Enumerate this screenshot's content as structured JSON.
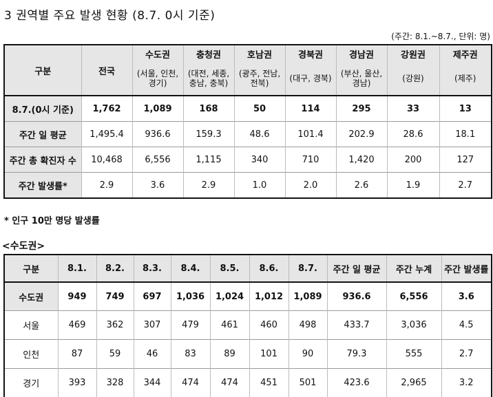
{
  "title": "3 권역별 주요 발생 현황 (8.7. 0시 기준)",
  "unit_note": "(주간: 8.1.~8.7., 단위: 명)",
  "table1": {
    "corner": "구분",
    "national": "전국",
    "regions": [
      {
        "name": "수도권",
        "sub": "(서울, 인천, 경기)"
      },
      {
        "name": "충청권",
        "sub": "(대전, 세종, 충남, 충북)"
      },
      {
        "name": "호남권",
        "sub": "(광주, 전남, 전북)"
      },
      {
        "name": "경북권",
        "sub": "(대구, 경북)"
      },
      {
        "name": "경남권",
        "sub": "(부산, 울산, 경남)"
      },
      {
        "name": "강원권",
        "sub": "(강원)"
      },
      {
        "name": "제주권",
        "sub": "(제주)"
      }
    ],
    "rows": [
      {
        "label": "8.7.(0시 기준)",
        "values": [
          "1,762",
          "1,089",
          "168",
          "50",
          "114",
          "295",
          "33",
          "13"
        ]
      },
      {
        "label": "주간 일 평균",
        "values": [
          "1,495.4",
          "936.6",
          "159.3",
          "48.6",
          "101.4",
          "202.9",
          "28.6",
          "18.1"
        ]
      },
      {
        "label": "주간 총 확진자 수",
        "values": [
          "10,468",
          "6,556",
          "1,115",
          "340",
          "710",
          "1,420",
          "200",
          "127"
        ]
      },
      {
        "label": "주간 발생률*",
        "values": [
          "2.9",
          "3.6",
          "2.9",
          "1.0",
          "2.0",
          "2.6",
          "1.9",
          "2.7"
        ]
      }
    ]
  },
  "footnote": "* 인구 10만 명당 발생률",
  "subtitle": "<수도권>",
  "table2": {
    "headers": [
      "구분",
      "8.1.",
      "8.2.",
      "8.3.",
      "8.4.",
      "8.5.",
      "8.6.",
      "8.7.",
      "주간 일 평균",
      "주간 누계",
      "주간 발생률"
    ],
    "rows": [
      {
        "label": "수도권",
        "values": [
          "949",
          "749",
          "697",
          "1,036",
          "1,024",
          "1,012",
          "1,089",
          "936.6",
          "6,556",
          "3.6"
        ]
      },
      {
        "label": "서울",
        "values": [
          "469",
          "362",
          "307",
          "479",
          "461",
          "460",
          "498",
          "433.7",
          "3,036",
          "4.5"
        ]
      },
      {
        "label": "인천",
        "values": [
          "87",
          "59",
          "46",
          "83",
          "89",
          "101",
          "90",
          "79.3",
          "555",
          "2.7"
        ]
      },
      {
        "label": "경기",
        "values": [
          "393",
          "328",
          "344",
          "474",
          "474",
          "451",
          "501",
          "423.6",
          "2,965",
          "3.2"
        ]
      }
    ]
  }
}
